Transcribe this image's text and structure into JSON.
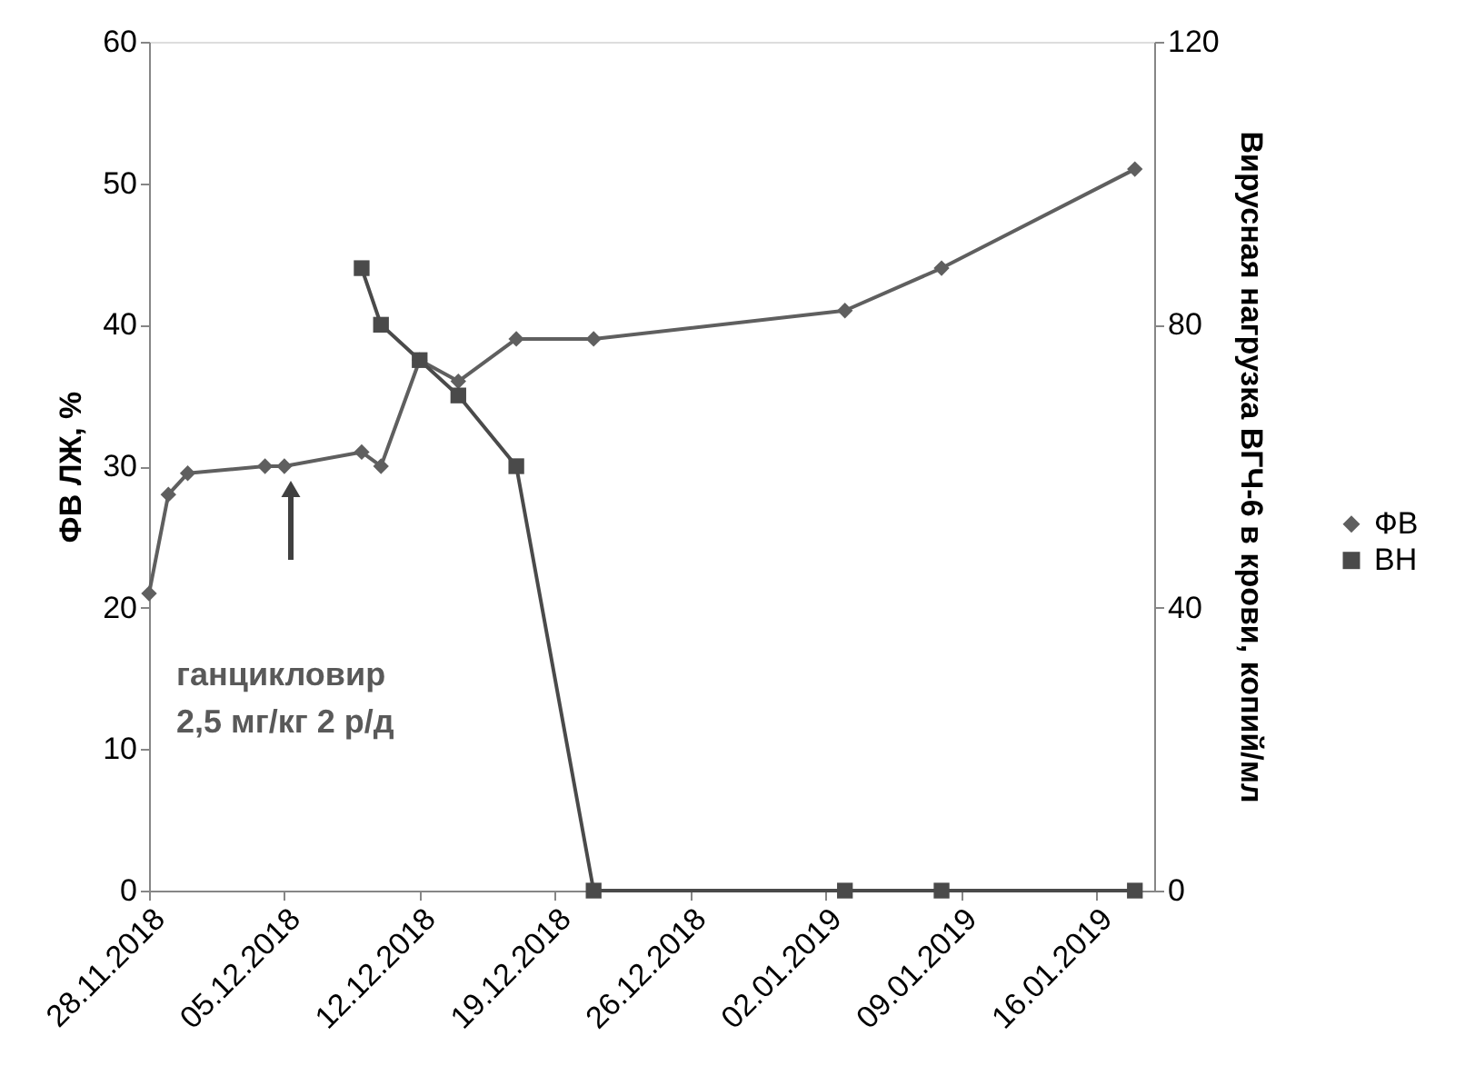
{
  "chart_data": {
    "type": "line",
    "ylabel": "ФВ ЛЖ, %",
    "y2label": "Вирусная нагрузка ВГЧ-6 в крови, копий/мл",
    "xlim": [
      "2018-11-28",
      "2019-01-19"
    ],
    "xticks": [
      {
        "value": "2018-11-28",
        "label": "28.11.2018"
      },
      {
        "value": "2018-12-05",
        "label": "05.12.2018"
      },
      {
        "value": "2018-12-12",
        "label": "12.12.2018"
      },
      {
        "value": "2018-12-19",
        "label": "19.12.2018"
      },
      {
        "value": "2018-12-26",
        "label": "26.12.2018"
      },
      {
        "value": "2019-01-02",
        "label": "02.01.2019"
      },
      {
        "value": "2019-01-09",
        "label": "09.01.2019"
      },
      {
        "value": "2019-01-16",
        "label": "16.01.2019"
      }
    ],
    "ylim": [
      0,
      60
    ],
    "yticks": [
      0,
      10,
      20,
      30,
      40,
      50,
      60
    ],
    "y2lim": [
      0,
      120
    ],
    "y2ticks": [
      0,
      40,
      80,
      120
    ],
    "grid": false,
    "legend": "right",
    "line_style": "solid",
    "series": [
      {
        "name": "ФВ",
        "color": "#5f5f5f",
        "marker": "diamond",
        "x": [
          "2018-11-28",
          "2018-11-29",
          "2018-11-30",
          "2018-12-04",
          "2018-12-05",
          "2018-12-09",
          "2018-12-10",
          "2018-12-12",
          "2018-12-14",
          "2018-12-17",
          "2018-12-21",
          "2019-01-03",
          "2019-01-08",
          "2019-01-18"
        ],
        "values": [
          21,
          28,
          29.5,
          30,
          30,
          31,
          30,
          37.5,
          36,
          39,
          39,
          41,
          44,
          51
        ]
      },
      {
        "name": "ВН",
        "color": "#4a4a4a",
        "marker": "square",
        "axis": "y2",
        "x": [
          "2018-12-09",
          "2018-12-10",
          "2018-12-12",
          "2018-12-14",
          "2018-12-17",
          "2018-12-21",
          "2019-01-03",
          "2019-01-08",
          "2019-01-18"
        ],
        "values": [
          88,
          80,
          75,
          70,
          60,
          0,
          0,
          0,
          0
        ]
      }
    ],
    "annotations": [
      "ганцикловир\n2,5 мг/кг 2 р/д"
    ]
  }
}
